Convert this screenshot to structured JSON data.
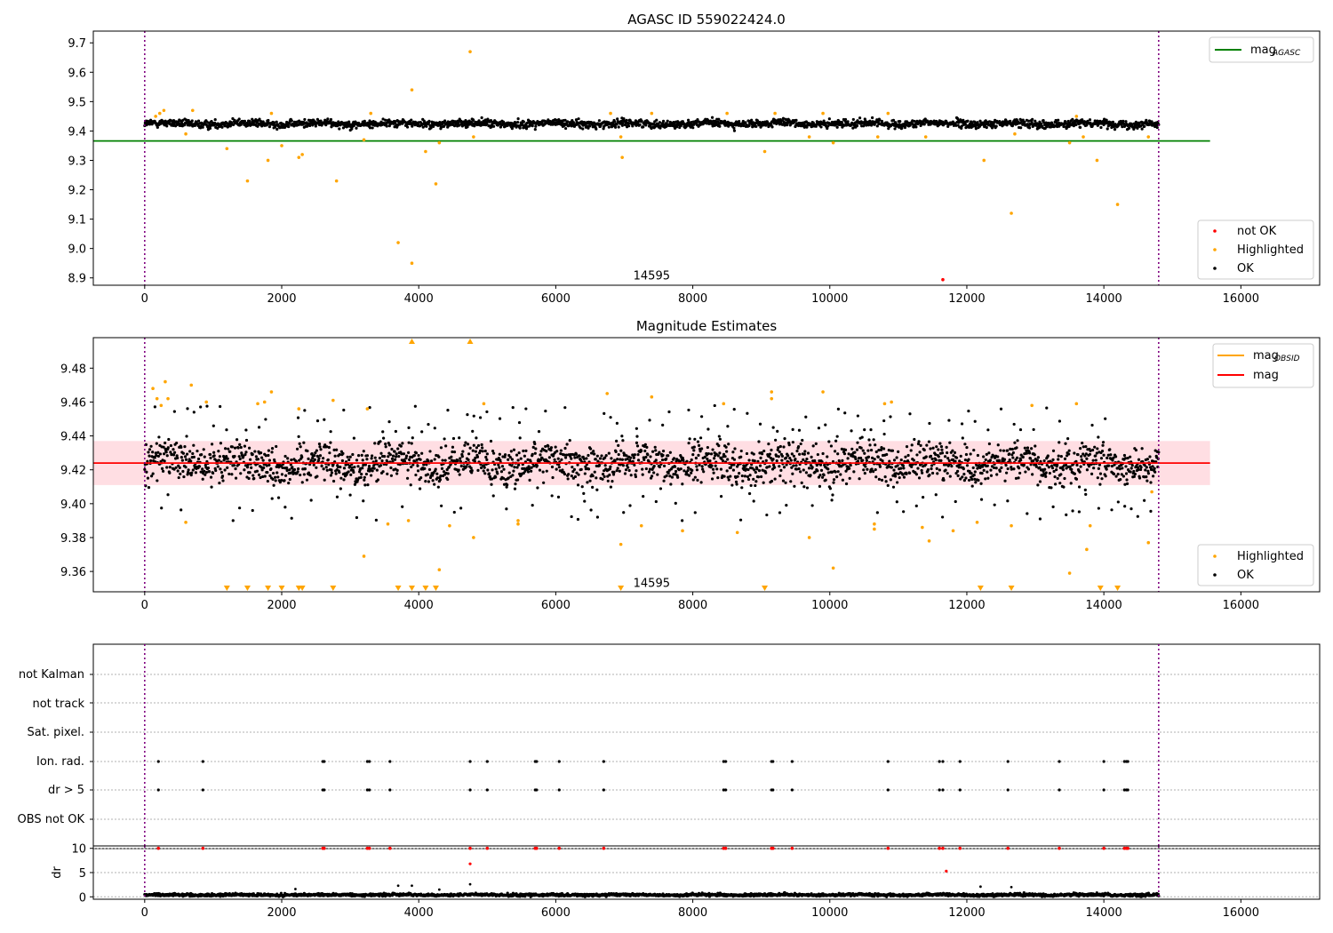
{
  "chart_data": [
    {
      "type": "scatter",
      "title": "AGASC ID 559022424.0",
      "xlim": [
        -750,
        17150
      ],
      "ylim": [
        8.875,
        9.74
      ],
      "xticks": [
        0,
        2000,
        4000,
        6000,
        8000,
        10000,
        12000,
        14000,
        16000
      ],
      "yticks": [
        8.9,
        9.0,
        9.1,
        9.2,
        9.3,
        9.4,
        9.5,
        9.6,
        9.7
      ],
      "xtick_labels": [
        "0",
        "2000",
        "4000",
        "6000",
        "8000",
        "10000",
        "12000",
        "14000",
        "16000"
      ],
      "ytick_labels": [
        "8.9",
        "9.0",
        "9.1",
        "9.2",
        "9.3",
        "9.4",
        "9.5",
        "9.6",
        "9.7"
      ],
      "vlines": [
        0,
        14800
      ],
      "obs_label": {
        "text": "14595",
        "x": 7400,
        "y": 8.9
      },
      "hline": {
        "name": "mag_AGASC",
        "y": 9.366,
        "x": [
          -750,
          15550
        ],
        "color": "#008000"
      },
      "ok_band": {
        "x": [
          0,
          14800
        ],
        "center": 9.425,
        "spread": 0.012,
        "color": "#000000"
      },
      "highlighted_points": [
        [
          160,
          9.45
        ],
        [
          220,
          9.46
        ],
        [
          280,
          9.47
        ],
        [
          600,
          9.39
        ],
        [
          700,
          9.47
        ],
        [
          1200,
          9.34
        ],
        [
          1500,
          9.23
        ],
        [
          1800,
          9.3
        ],
        [
          1850,
          9.46
        ],
        [
          2000,
          9.35
        ],
        [
          2250,
          9.31
        ],
        [
          2300,
          9.32
        ],
        [
          2800,
          9.23
        ],
        [
          3200,
          9.37
        ],
        [
          3300,
          9.46
        ],
        [
          3700,
          9.02
        ],
        [
          3900,
          9.54
        ],
        [
          3900,
          8.95
        ],
        [
          4100,
          9.33
        ],
        [
          4250,
          9.22
        ],
        [
          4300,
          9.36
        ],
        [
          4750,
          9.67
        ],
        [
          4800,
          9.38
        ],
        [
          6800,
          9.46
        ],
        [
          6950,
          9.38
        ],
        [
          6970,
          9.31
        ],
        [
          7400,
          9.46
        ],
        [
          8500,
          9.46
        ],
        [
          9050,
          9.33
        ],
        [
          9200,
          9.46
        ],
        [
          9700,
          9.38
        ],
        [
          9900,
          9.46
        ],
        [
          10050,
          9.36
        ],
        [
          10700,
          9.38
        ],
        [
          10850,
          9.46
        ],
        [
          11400,
          9.38
        ],
        [
          12250,
          9.3
        ],
        [
          12650,
          9.12
        ],
        [
          12700,
          9.39
        ],
        [
          13500,
          9.36
        ],
        [
          13600,
          9.45
        ],
        [
          13700,
          9.38
        ],
        [
          13900,
          9.3
        ],
        [
          14200,
          9.15
        ],
        [
          14650,
          9.38
        ]
      ],
      "not_ok_points": [
        [
          11650,
          8.894
        ]
      ],
      "legend_lines": [
        {
          "label": "mag",
          "subscript": "AGASC",
          "color": "#008000"
        }
      ],
      "legend_points": [
        {
          "label": "not OK",
          "color": "#ff0000"
        },
        {
          "label": "Highlighted",
          "color": "#ffa500"
        },
        {
          "label": "OK",
          "color": "#000000"
        }
      ]
    },
    {
      "type": "scatter",
      "title": "Magnitude Estimates",
      "xlim": [
        -750,
        17150
      ],
      "ylim": [
        9.348,
        9.498
      ],
      "xticks": [
        0,
        2000,
        4000,
        6000,
        8000,
        10000,
        12000,
        14000,
        16000
      ],
      "yticks": [
        9.36,
        9.38,
        9.4,
        9.42,
        9.44,
        9.46,
        9.48
      ],
      "xtick_labels": [
        "0",
        "2000",
        "4000",
        "6000",
        "8000",
        "10000",
        "12000",
        "14000",
        "16000"
      ],
      "ytick_labels": [
        "9.36",
        "9.38",
        "9.40",
        "9.42",
        "9.44",
        "9.46",
        "9.48"
      ],
      "vlines": [
        0,
        14800
      ],
      "obs_label": {
        "text": "14595",
        "x": 7400,
        "y": 9.352
      },
      "mag_line": {
        "name": "mag",
        "y": 9.424,
        "x": [
          -750,
          15550
        ],
        "color": "#ff0000"
      },
      "mag_obsid": {
        "name": "mag_OBSID",
        "y": 9.424,
        "color": "#ffa500"
      },
      "band": {
        "y": [
          9.411,
          9.437
        ],
        "x": [
          -750,
          15550
        ],
        "color": "#ffb6c1"
      },
      "ok_band": {
        "x": [
          0,
          14800
        ],
        "center": 9.424,
        "spread": 0.011,
        "color": "#000000"
      },
      "highlighted_points": [
        [
          120,
          9.468
        ],
        [
          180,
          9.462
        ],
        [
          240,
          9.458
        ],
        [
          300,
          9.472
        ],
        [
          340,
          9.462
        ],
        [
          600,
          9.389
        ],
        [
          680,
          9.47
        ],
        [
          900,
          9.46
        ],
        [
          1650,
          9.459
        ],
        [
          1750,
          9.46
        ],
        [
          1850,
          9.466
        ],
        [
          2250,
          9.456
        ],
        [
          2750,
          9.461
        ],
        [
          3200,
          9.369
        ],
        [
          3250,
          9.456
        ],
        [
          3550,
          9.388
        ],
        [
          3850,
          9.39
        ],
        [
          4300,
          9.361
        ],
        [
          4450,
          9.387
        ],
        [
          4800,
          9.38
        ],
        [
          4950,
          9.459
        ],
        [
          5450,
          9.39
        ],
        [
          5450,
          9.388
        ],
        [
          6750,
          9.465
        ],
        [
          6950,
          9.376
        ],
        [
          7250,
          9.387
        ],
        [
          7400,
          9.463
        ],
        [
          7850,
          9.384
        ],
        [
          8450,
          9.459
        ],
        [
          8650,
          9.383
        ],
        [
          9150,
          9.466
        ],
        [
          9150,
          9.462
        ],
        [
          9700,
          9.38
        ],
        [
          9900,
          9.466
        ],
        [
          10050,
          9.362
        ],
        [
          10650,
          9.388
        ],
        [
          10650,
          9.385
        ],
        [
          10800,
          9.459
        ],
        [
          10900,
          9.46
        ],
        [
          11350,
          9.386
        ],
        [
          11450,
          9.378
        ],
        [
          11800,
          9.384
        ],
        [
          12150,
          9.389
        ],
        [
          12650,
          9.387
        ],
        [
          12950,
          9.458
        ],
        [
          13500,
          9.359
        ],
        [
          13600,
          9.459
        ],
        [
          13750,
          9.373
        ],
        [
          13800,
          9.387
        ],
        [
          14650,
          9.377
        ],
        [
          14700,
          9.407
        ]
      ],
      "arrows_up": [
        3900,
        4750
      ],
      "arrows_down": [
        1200,
        1500,
        1800,
        2000,
        2250,
        2300,
        2750,
        3700,
        3900,
        4100,
        4250,
        6950,
        9050,
        12200,
        12650,
        13950,
        14200
      ],
      "legend_lines": [
        {
          "label": "mag",
          "subscript": "OBSID",
          "color": "#ffa500"
        },
        {
          "label": "mag",
          "subscript": "",
          "color": "#ff0000"
        }
      ],
      "legend_points": [
        {
          "label": "Highlighted",
          "color": "#ffa500"
        },
        {
          "label": "OK",
          "color": "#000000"
        }
      ]
    },
    {
      "type": "scatter",
      "title": "",
      "xlim": [
        -750,
        17150
      ],
      "categories": [
        "not Kalman",
        "not track",
        "Sat. pixel.",
        "Ion. rad.",
        "dr > 5",
        "OBS not OK"
      ],
      "vlines": [
        0,
        14800
      ],
      "flag_times": [
        200,
        850,
        2600,
        2620,
        3250,
        3280,
        3580,
        4750,
        5000,
        5700,
        5720,
        6050,
        6700,
        8450,
        8480,
        9150,
        9170,
        9450,
        10850,
        11600,
        11650,
        11900,
        12600,
        13350,
        14000,
        14300,
        14330,
        14350
      ],
      "flagged_rows": [
        "Ion. rad.",
        "dr > 5"
      ],
      "flag_color": "#000000"
    },
    {
      "type": "scatter",
      "title": "",
      "ylabel": "dr",
      "xlim": [
        -750,
        17150
      ],
      "ylim": [
        -0.5,
        10.5
      ],
      "xticks": [
        0,
        2000,
        4000,
        6000,
        8000,
        10000,
        12000,
        14000,
        16000
      ],
      "yticks": [
        0,
        5,
        10
      ],
      "xtick_labels": [
        "0",
        "2000",
        "4000",
        "6000",
        "8000",
        "10000",
        "12000",
        "14000",
        "16000"
      ],
      "ytick_labels": [
        "0",
        "5",
        "10"
      ],
      "vlines": [
        0,
        14800
      ],
      "ok_band": {
        "x": [
          0,
          14800
        ],
        "center": 0.4,
        "spread": 0.25,
        "color": "#000000"
      },
      "capped_points_y": 10,
      "capped_points_color": "#ff0000",
      "capped_points_x": [
        200,
        850,
        2600,
        2620,
        3250,
        3280,
        3580,
        4750,
        5000,
        5700,
        5720,
        6050,
        6700,
        8450,
        8480,
        9150,
        9170,
        9450,
        10850,
        11600,
        11650,
        11900,
        12600,
        13350,
        14000,
        14300,
        14330,
        14350
      ],
      "extra_red_points": [
        [
          4750,
          6.8
        ],
        [
          11700,
          5.3
        ]
      ],
      "extra_black_points": [
        [
          3700,
          2.3
        ],
        [
          3900,
          2.3
        ],
        [
          4750,
          2.6
        ],
        [
          12200,
          2.1
        ],
        [
          12650,
          2.0
        ],
        [
          2200,
          1.6
        ],
        [
          4300,
          1.5
        ]
      ]
    }
  ]
}
